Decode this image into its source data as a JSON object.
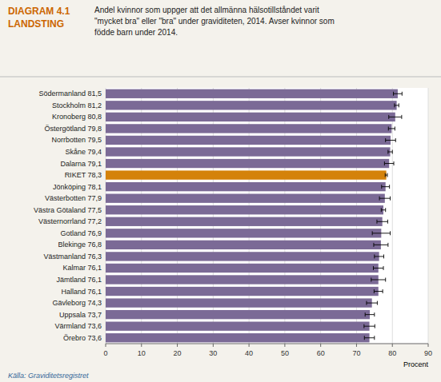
{
  "chart_data": {
    "type": "bar",
    "orientation": "horizontal",
    "title": "DIAGRAM  4.1",
    "subtitle": "LANDSTING",
    "annotations": [
      "Andel kvinnor som uppger att det allmänna hälsotillståndet varit\n\"mycket bra\" eller \"bra\" under graviditeten, 2014. Avser kvinnor som\nfödde barn under 2014.",
      "Källa: Graviditetsregistret"
    ],
    "x_label": "Procent",
    "categories": [
      "Södermanland",
      "Stockholm",
      "Kronoberg",
      "Östergötland",
      "Norrbotten",
      "Skåne",
      "Dalarna",
      "RIKET",
      "Jönköping",
      "Västerbotten",
      "Västra Götaland",
      "Västernorrland",
      "Gotland",
      "Blekinge",
      "Västmanland",
      "Kalmar",
      "Jämtland",
      "Halland",
      "Gävleborg",
      "Uppsala",
      "Värmland",
      "Örebro"
    ],
    "values": [
      81.5,
      81.2,
      80.8,
      79.8,
      79.5,
      79.4,
      79.1,
      78.3,
      78.1,
      77.9,
      77.5,
      77.2,
      76.9,
      76.8,
      76.3,
      76.1,
      76.1,
      76.1,
      74.3,
      73.7,
      73.6,
      73.6
    ],
    "value_labels": [
      "81,5",
      "81,2",
      "80,8",
      "79,8",
      "79,5",
      "79,4",
      "79,1",
      "78,3",
      "78,1",
      "77,9",
      "77,5",
      "77,2",
      "76,9",
      "76,8",
      "76,3",
      "76,1",
      "76,1",
      "76,1",
      "74,3",
      "73,7",
      "73,6",
      "73,6"
    ],
    "data_labels": true,
    "error_bars": [
      1.2,
      0.6,
      1.8,
      0.9,
      1.4,
      0.6,
      1.3,
      0.3,
      1.1,
      1.5,
      0.6,
      1.5,
      2.5,
      2.0,
      1.3,
      1.4,
      2.0,
      1.2,
      1.5,
      1.3,
      1.5,
      1.4
    ],
    "colors": [
      "#7B6A96",
      "#7B6A96",
      "#7B6A96",
      "#7B6A96",
      "#7B6A96",
      "#7B6A96",
      "#7B6A96",
      "#D4820A",
      "#7B6A96",
      "#7B6A96",
      "#7B6A96",
      "#7B6A96",
      "#7B6A96",
      "#7B6A96",
      "#7B6A96",
      "#7B6A96",
      "#7B6A96",
      "#7B6A96",
      "#7B6A96",
      "#7B6A96",
      "#7B6A96",
      "#7B6A96"
    ],
    "xlim": [
      0,
      90
    ],
    "xticks": [
      0,
      10,
      20,
      30,
      40,
      50,
      60,
      70,
      80,
      90
    ],
    "grid": true
  }
}
